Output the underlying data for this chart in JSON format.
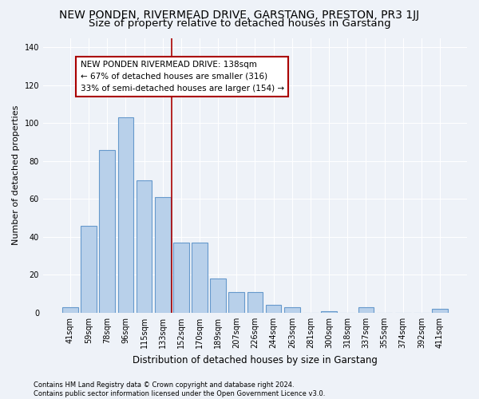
{
  "title": "NEW PONDEN, RIVERMEAD DRIVE, GARSTANG, PRESTON, PR3 1JJ",
  "subtitle": "Size of property relative to detached houses in Garstang",
  "xlabel": "Distribution of detached houses by size in Garstang",
  "ylabel": "Number of detached properties",
  "footer": "Contains HM Land Registry data © Crown copyright and database right 2024.\nContains public sector information licensed under the Open Government Licence v3.0.",
  "categories": [
    "41sqm",
    "59sqm",
    "78sqm",
    "96sqm",
    "115sqm",
    "133sqm",
    "152sqm",
    "170sqm",
    "189sqm",
    "207sqm",
    "226sqm",
    "244sqm",
    "263sqm",
    "281sqm",
    "300sqm",
    "318sqm",
    "337sqm",
    "355sqm",
    "374sqm",
    "392sqm",
    "411sqm"
  ],
  "values": [
    3,
    46,
    86,
    103,
    70,
    61,
    37,
    37,
    18,
    11,
    11,
    4,
    3,
    0,
    1,
    0,
    3,
    0,
    0,
    0,
    2
  ],
  "bar_color": "#b8d0ea",
  "bar_edge_color": "#6699cc",
  "vline_index": 5.5,
  "vline_color": "#aa0000",
  "annotation_text": "NEW PONDEN RIVERMEAD DRIVE: 138sqm\n← 67% of detached houses are smaller (316)\n33% of semi-detached houses are larger (154) →",
  "ylim": [
    0,
    145
  ],
  "yticks": [
    0,
    20,
    40,
    60,
    80,
    100,
    120,
    140
  ],
  "background_color": "#eef2f8",
  "plot_background": "#eef2f8",
  "grid_color": "#ffffff",
  "title_fontsize": 10,
  "subtitle_fontsize": 9.5,
  "xlabel_fontsize": 8.5,
  "ylabel_fontsize": 8,
  "tick_fontsize": 7,
  "annotation_fontsize": 7.5,
  "footer_fontsize": 6
}
